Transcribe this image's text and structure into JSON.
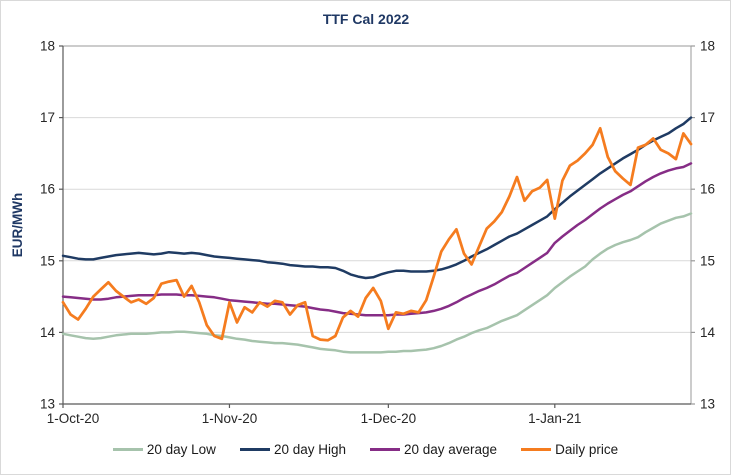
{
  "figure": {
    "background": "#ffffff",
    "frame_border_color": "#d9d9d9",
    "plot_border_color": "#9a9a9a",
    "axis_line_color": "#595959",
    "gridline_color": "#d9d9d9",
    "tick_text_color": "#262626",
    "accent_text_color": "#1f3864"
  },
  "chart_data": {
    "type": "line",
    "title": "TTF Cal 2022",
    "xlabel": "",
    "ylabel": "EUR/MWh",
    "ylim": [
      13,
      18
    ],
    "y_ticks": [
      13,
      14,
      15,
      16,
      17,
      18
    ],
    "y_axis_sides": [
      "left",
      "right"
    ],
    "grid": "horizontal",
    "legend_position": "bottom",
    "n_points": 84,
    "x_range_note": "daily values from 1-Oct-20 to 28-Jan-21",
    "x_tick_labels": [
      "1-Oct-20",
      "1-Nov-20",
      "1-Dec-20",
      "1-Jan-21"
    ],
    "x_tick_indices": [
      0,
      22,
      43,
      65
    ],
    "series": [
      {
        "name": "20 day Low",
        "color": "#a6c3ac",
        "width": 2.5,
        "values": [
          13.98,
          13.96,
          13.94,
          13.92,
          13.91,
          13.92,
          13.94,
          13.96,
          13.97,
          13.98,
          13.98,
          13.98,
          13.99,
          14.0,
          14.0,
          14.01,
          14.01,
          14.0,
          13.99,
          13.98,
          13.96,
          13.95,
          13.93,
          13.91,
          13.9,
          13.88,
          13.87,
          13.86,
          13.85,
          13.85,
          13.84,
          13.83,
          13.81,
          13.79,
          13.77,
          13.76,
          13.75,
          13.73,
          13.72,
          13.72,
          13.72,
          13.72,
          13.72,
          13.73,
          13.73,
          13.74,
          13.74,
          13.75,
          13.76,
          13.78,
          13.81,
          13.85,
          13.9,
          13.94,
          13.99,
          14.03,
          14.06,
          14.11,
          14.16,
          14.2,
          14.24,
          14.31,
          14.38,
          14.45,
          14.52,
          14.62,
          14.7,
          14.78,
          14.85,
          14.92,
          15.02,
          15.1,
          15.17,
          15.22,
          15.26,
          15.29,
          15.33,
          15.4,
          15.46,
          15.52,
          15.56,
          15.6,
          15.62,
          15.66
        ]
      },
      {
        "name": "20 day High",
        "color": "#1f3b63",
        "width": 2.5,
        "values": [
          15.07,
          15.05,
          15.03,
          15.02,
          15.02,
          15.04,
          15.06,
          15.08,
          15.09,
          15.1,
          15.11,
          15.1,
          15.09,
          15.1,
          15.12,
          15.11,
          15.1,
          15.11,
          15.1,
          15.08,
          15.06,
          15.05,
          15.04,
          15.03,
          15.02,
          15.01,
          15.0,
          14.98,
          14.97,
          14.96,
          14.94,
          14.93,
          14.92,
          14.92,
          14.91,
          14.91,
          14.9,
          14.86,
          14.81,
          14.78,
          14.76,
          14.77,
          14.81,
          14.84,
          14.86,
          14.86,
          14.85,
          14.85,
          14.85,
          14.86,
          14.88,
          14.91,
          14.95,
          15.0,
          15.06,
          15.11,
          15.16,
          15.22,
          15.28,
          15.34,
          15.38,
          15.44,
          15.5,
          15.56,
          15.62,
          15.72,
          15.81,
          15.9,
          15.98,
          16.06,
          16.14,
          16.22,
          16.29,
          16.36,
          16.43,
          16.49,
          16.55,
          16.62,
          16.68,
          16.73,
          16.78,
          16.85,
          16.91,
          17.0
        ]
      },
      {
        "name": "20 day average",
        "color": "#862d86",
        "width": 2.5,
        "values": [
          14.5,
          14.49,
          14.48,
          14.47,
          14.46,
          14.46,
          14.47,
          14.49,
          14.5,
          14.51,
          14.52,
          14.52,
          14.52,
          14.53,
          14.53,
          14.53,
          14.52,
          14.52,
          14.51,
          14.5,
          14.49,
          14.47,
          14.45,
          14.44,
          14.43,
          14.42,
          14.41,
          14.4,
          14.4,
          14.39,
          14.38,
          14.37,
          14.36,
          14.34,
          14.32,
          14.31,
          14.29,
          14.27,
          14.26,
          14.25,
          14.24,
          14.24,
          14.24,
          14.24,
          14.25,
          14.25,
          14.26,
          14.27,
          14.28,
          14.3,
          14.33,
          14.37,
          14.42,
          14.48,
          14.53,
          14.58,
          14.62,
          14.67,
          14.73,
          14.79,
          14.83,
          14.9,
          14.97,
          15.04,
          15.11,
          15.25,
          15.34,
          15.42,
          15.5,
          15.57,
          15.65,
          15.73,
          15.8,
          15.86,
          15.92,
          15.97,
          16.04,
          16.11,
          16.17,
          16.22,
          16.26,
          16.29,
          16.31,
          16.36
        ]
      },
      {
        "name": "Daily price",
        "color": "#f57c1f",
        "width": 2.75,
        "values": [
          14.42,
          14.25,
          14.18,
          14.33,
          14.5,
          14.6,
          14.7,
          14.58,
          14.5,
          14.42,
          14.46,
          14.4,
          14.48,
          14.68,
          14.71,
          14.73,
          14.5,
          14.65,
          14.42,
          14.1,
          13.95,
          13.91,
          14.42,
          14.14,
          14.35,
          14.28,
          14.42,
          14.36,
          14.44,
          14.42,
          14.25,
          14.38,
          14.42,
          13.95,
          13.9,
          13.89,
          13.95,
          14.21,
          14.3,
          14.22,
          14.48,
          14.62,
          14.44,
          14.05,
          14.28,
          14.26,
          14.3,
          14.28,
          14.45,
          14.78,
          15.13,
          15.3,
          15.44,
          15.1,
          14.95,
          15.2,
          15.45,
          15.55,
          15.68,
          15.9,
          16.17,
          15.84,
          15.97,
          16.02,
          16.13,
          15.59,
          16.12,
          16.33,
          16.4,
          16.5,
          16.62,
          16.85,
          16.45,
          16.25,
          16.15,
          16.06,
          16.58,
          16.62,
          16.71,
          16.55,
          16.5,
          16.42,
          16.78,
          16.63
        ]
      }
    ]
  }
}
